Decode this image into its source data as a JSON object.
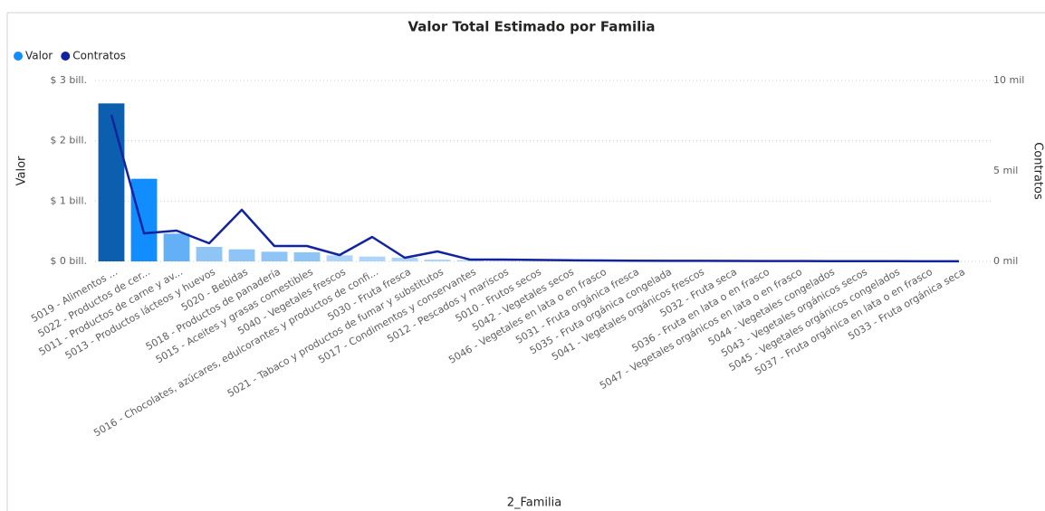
{
  "chart_data": {
    "type": "combo",
    "title": "Valor Total Estimado por Familia",
    "x_label": "2_Familia",
    "y_label": "Valor",
    "y2_label": "Contratos",
    "categories": [
      "5019 - Alimentos ...",
      "5022 - Productos de cer...",
      "5011 - Productos de carne y av...",
      "5013 - Productos lácteos y huevos",
      "5020 - Bebidas",
      "5018 - Productos de panadería",
      "5015 - Aceites y grasas comestibles",
      "5040 - Vegetales frescos",
      "5016 - Chocolates, azúcares, edulcorantes y productos de confi...",
      "5030 - Fruta fresca",
      "5021 - Tabaco y productos de fumar y substitutos",
      "5017 - Condimentos y conservantes",
      "5012 - Pescados y mariscos",
      "5010 - Frutos secos",
      "5042 - Vegetales secos",
      "5046 - Vegetales en lata o en frasco",
      "5031 - Fruta orgánica fresca",
      "5035 - Fruta orgánica congelada",
      "5041 - Vegetales orgánicos frescos",
      "5032 - Fruta seca",
      "5036 - Fruta en lata o en frasco",
      "5047 - Vegetales orgánicos en lata o en frasco",
      "5044 - Vegetales congelados",
      "5043 - Vegetales orgánicos secos",
      "5045 - Vegetales orgánicos congelados",
      "5037 - Fruta orgánica en lata o en frasco",
      "5033 - Fruta orgánica seca"
    ],
    "series": [
      {
        "name": "Valor",
        "color": "#118dff",
        "colors": [
          "#0c5fae",
          "#118dff",
          "#63b0f6",
          "#8fc4f6",
          "#8fc4f6",
          "#8fc4f6",
          "#8fc4f6",
          "#aed5f8",
          "#aed5f8",
          "#aed5f8",
          "#aed5f8",
          "#aed5f8",
          "#c9e3fa",
          "#c9e3fa",
          "#c9e3fa",
          "#c9e3fa",
          "#c9e3fa",
          "#c9e3fa",
          "#c9e3fa",
          "#c9e3fa",
          "#c9e3fa",
          "#c9e3fa",
          "#c9e3fa",
          "#c9e3fa",
          "#c9e3fa",
          "#c9e3fa",
          "#c9e3fa"
        ],
        "values": [
          2.62,
          1.37,
          0.46,
          0.24,
          0.2,
          0.16,
          0.15,
          0.1,
          0.08,
          0.06,
          0.03,
          0.02,
          0.015,
          0.012,
          0.01,
          0.008,
          0.006,
          0.005,
          0.004,
          0.004,
          0.003,
          0.003,
          0.002,
          0.002,
          0.001,
          0.001,
          0.001
        ]
      },
      {
        "name": "Contratos",
        "color": "#12239e",
        "axis": "y2",
        "values": [
          8100,
          1550,
          1700,
          1000,
          2850,
          850,
          850,
          350,
          1350,
          200,
          550,
          100,
          100,
          80,
          60,
          50,
          40,
          30,
          30,
          25,
          20,
          20,
          15,
          10,
          10,
          5,
          5
        ]
      }
    ],
    "ylim": [
      0,
      3
    ],
    "yticks": [
      {
        "value": 0,
        "label": "$ 0 bill."
      },
      {
        "value": 1,
        "label": "$ 1 bill."
      },
      {
        "value": 2,
        "label": "$ 2 bill."
      },
      {
        "value": 3,
        "label": "$ 3 bill."
      }
    ],
    "y2lim": [
      0,
      10000
    ],
    "y2ticks": [
      {
        "value": 0,
        "label": "0 mil"
      },
      {
        "value": 5000,
        "label": "5 mil"
      },
      {
        "value": 10000,
        "label": "10 mil"
      }
    ],
    "grid": true,
    "legend": "top-left"
  }
}
